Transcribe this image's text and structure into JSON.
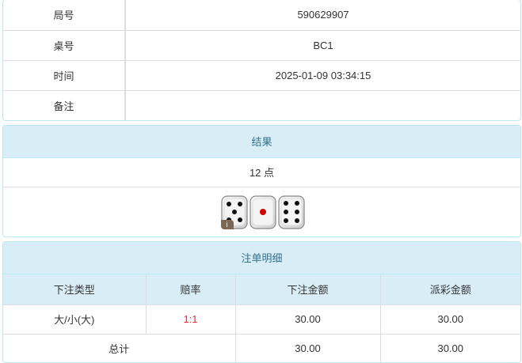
{
  "info": [
    {
      "label": "局号",
      "value": "590629907"
    },
    {
      "label": "桌号",
      "value": "BC1"
    },
    {
      "label": "时间",
      "value": "2025-01-09 03:34:15"
    },
    {
      "label": "备注",
      "value": ""
    }
  ],
  "result": {
    "title": "结果",
    "points": "12 点",
    "dice": [
      5,
      1,
      6
    ],
    "badge": "i"
  },
  "bets": {
    "title": "注单明细",
    "headers": [
      "下注类型",
      "赔率",
      "下注金额",
      "派彩金额"
    ],
    "rows": [
      {
        "type": "大/小(大)",
        "odds": "1:1",
        "amount": "30.00",
        "payout": "30.00"
      }
    ],
    "total": {
      "label": "总计",
      "amount": "30.00",
      "payout": "30.00"
    },
    "odds_color": "#e4293b"
  }
}
